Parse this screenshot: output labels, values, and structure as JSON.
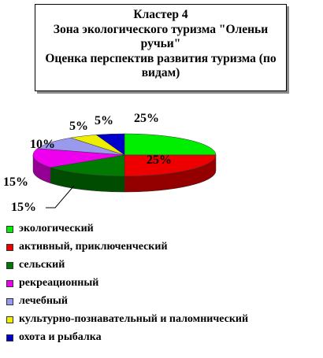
{
  "title": {
    "line1": "Кластер 4",
    "line2": "Зона экологического туризма \"Оленьи ручьи\"",
    "line3": "Оценка перспектив развития туризма (по видам)"
  },
  "chart_data": {
    "type": "pie",
    "title": "Кластер 4 Зона экологического туризма \"Оленьи ручьи\" Оценка перспектив развития туризма (по видам)",
    "legend_position": "bottom",
    "slices": [
      {
        "label": "экологический",
        "value": 25,
        "data_label": "25%",
        "color": "#00ee00"
      },
      {
        "label": "активный, приключенческий",
        "value": 25,
        "data_label": "25%",
        "color": "#ee0000"
      },
      {
        "label": "сельский",
        "value": 15,
        "data_label": "15%",
        "color": "#007a00"
      },
      {
        "label": "рекреационный",
        "value": 15,
        "data_label": "15%",
        "color": "#ee00ee"
      },
      {
        "label": "лечебный",
        "value": 10,
        "data_label": "10%",
        "color": "#9999ee"
      },
      {
        "label": "культурно-познавательный и паломнический",
        "value": 5,
        "data_label": "5%",
        "color": "#eeee00"
      },
      {
        "label": "охота и рыбалка",
        "value": 5,
        "data_label": "5%",
        "color": "#0000cc"
      }
    ]
  }
}
